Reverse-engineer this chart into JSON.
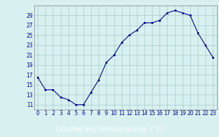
{
  "hours": [
    0,
    1,
    2,
    3,
    4,
    5,
    6,
    7,
    8,
    9,
    10,
    11,
    12,
    13,
    14,
    15,
    16,
    17,
    18,
    19,
    20,
    21,
    22,
    23
  ],
  "temps": [
    16.5,
    14.0,
    14.0,
    12.5,
    12.0,
    11.0,
    11.0,
    13.5,
    16.0,
    19.5,
    21.0,
    23.5,
    25.0,
    26.0,
    27.5,
    27.5,
    28.0,
    29.5,
    30.0,
    29.5,
    29.0,
    25.5,
    23.0,
    20.5
  ],
  "line_color": "#00008B",
  "marker": "s",
  "marker_size": 2,
  "background_color": "#d8f0f0",
  "grid_color": "#a8c8c8",
  "xlabel": "Graphe des températures (°C)",
  "xlabel_bg": "#2020a0",
  "xlabel_color": "#ffffff",
  "ylim": [
    10,
    31
  ],
  "yticks": [
    11,
    13,
    15,
    17,
    19,
    21,
    23,
    25,
    27,
    29
  ],
  "xticks": [
    0,
    1,
    2,
    3,
    4,
    5,
    6,
    7,
    8,
    9,
    10,
    11,
    12,
    13,
    14,
    15,
    16,
    17,
    18,
    19,
    20,
    21,
    22,
    23
  ],
  "spine_color": "#808080",
  "tick_color": "#00008B",
  "tick_fontsize": 5.5,
  "xlabel_fontsize": 7.5
}
